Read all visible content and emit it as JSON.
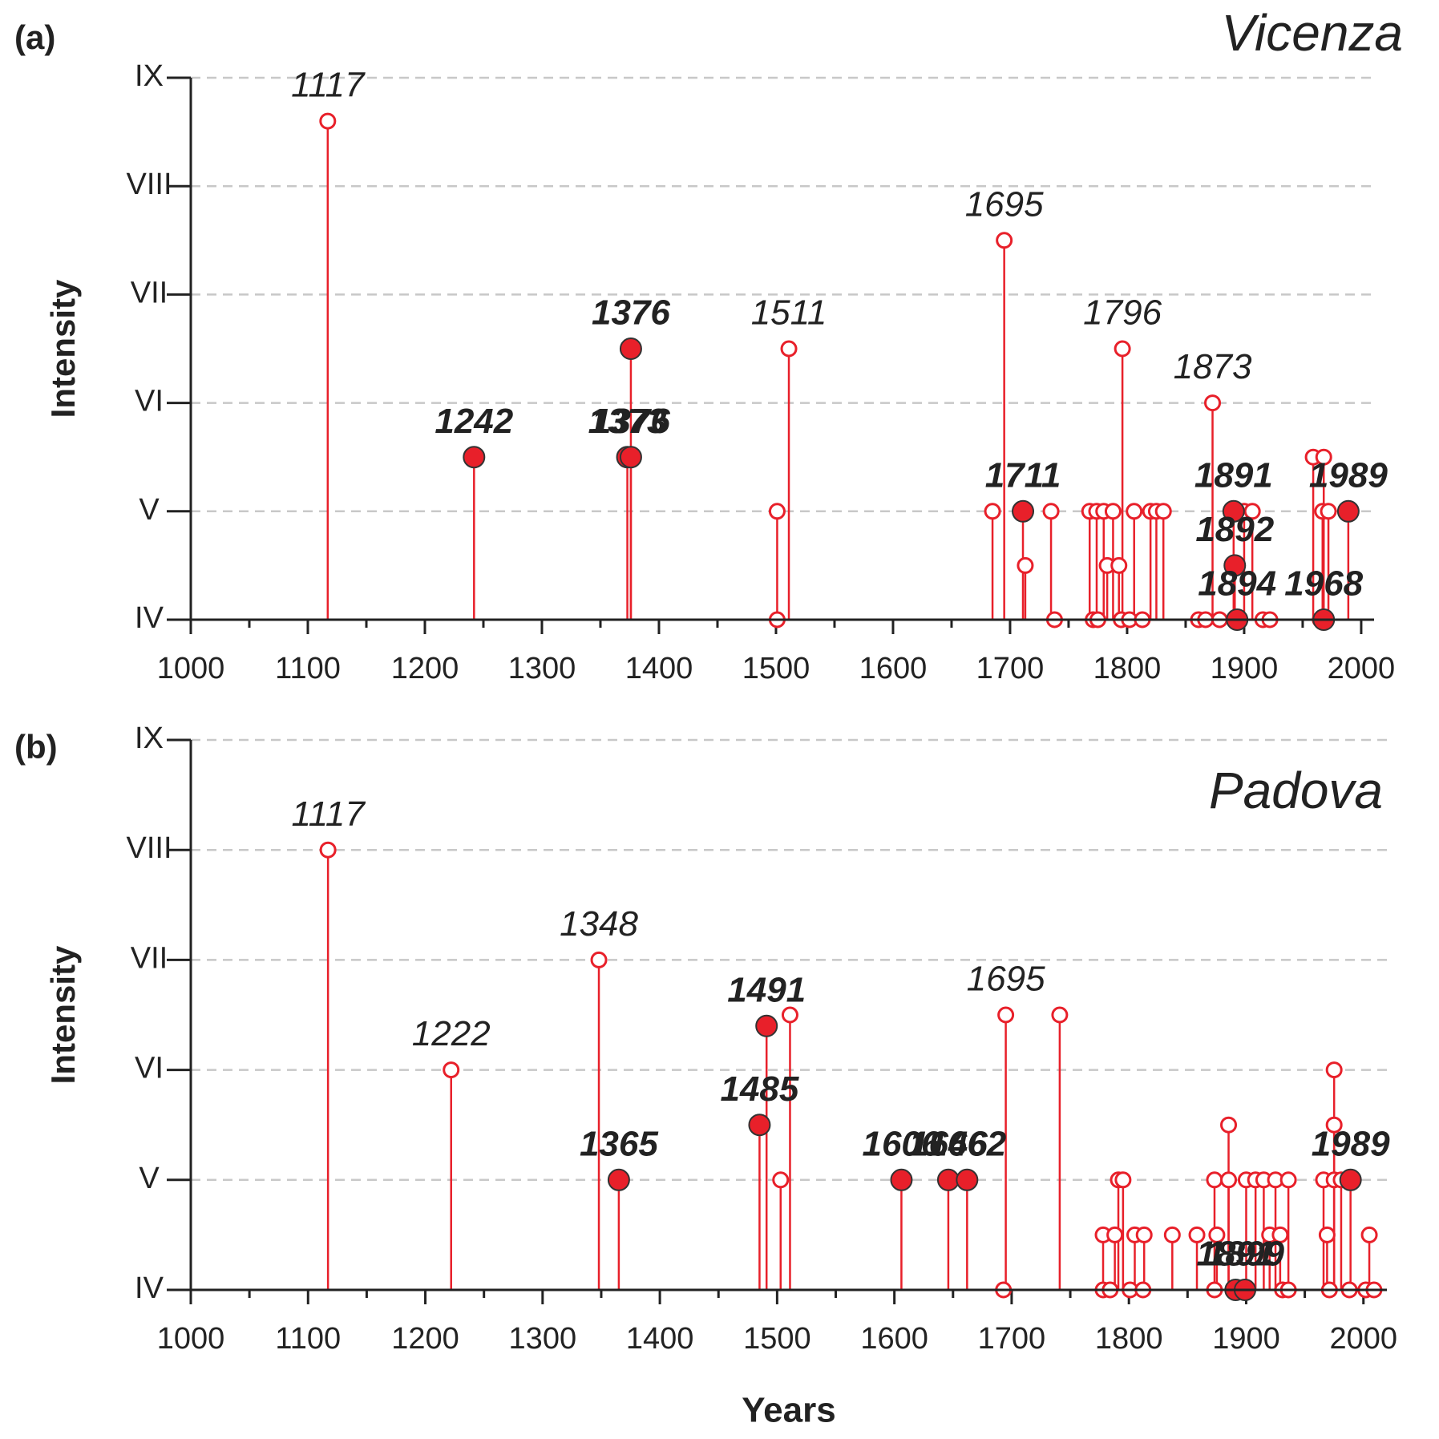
{
  "chart_data": [
    {
      "type": "stem",
      "panel_label": "(a)",
      "title": "Vicenza",
      "ylabel": "Intensity",
      "xlim": [
        1000,
        2011
      ],
      "ylim": [
        4,
        9
      ],
      "xticks": [
        1000,
        1100,
        1200,
        1300,
        1400,
        1500,
        1600,
        1700,
        1800,
        1900,
        2000
      ],
      "xminorticks": [
        1050,
        1150,
        1250,
        1350,
        1450,
        1550,
        1650,
        1750,
        1850,
        1950
      ],
      "yticks": [
        {
          "value": 4,
          "label": "IV"
        },
        {
          "value": 5,
          "label": "V"
        },
        {
          "value": 6,
          "label": "VI"
        },
        {
          "value": 7,
          "label": "VII"
        },
        {
          "value": 8,
          "label": "VIII"
        },
        {
          "value": 9,
          "label": "IX"
        }
      ],
      "grid": true,
      "color": "#e8202a",
      "title_color": "#116b3c",
      "series": [
        {
          "marker": "open",
          "labels": true,
          "x": [
            1117,
            1511,
            1695,
            1796,
            1873
          ],
          "values": [
            8.6,
            6.5,
            7.5,
            6.5,
            6
          ]
        },
        {
          "marker": "open",
          "labels": false,
          "x": [
            1501,
            1501,
            1685,
            1713,
            1735,
            1738,
            1768,
            1774,
            1780,
            1788,
            1783,
            1793,
            1771,
            1775,
            1795,
            1802,
            1813,
            1806,
            1820,
            1825,
            1831,
            1861,
            1867,
            1900,
            1907,
            1879,
            1916,
            1922,
            1959,
            1968,
            1967,
            1972,
            1965
          ],
          "values": [
            5,
            4,
            5,
            4.5,
            5,
            4,
            5,
            5,
            5,
            5,
            4.5,
            4.5,
            4,
            4,
            4,
            4,
            4,
            5,
            5,
            5,
            5,
            4,
            4,
            5,
            5,
            4,
            4,
            4,
            5.5,
            5.5,
            5,
            5,
            4
          ]
        },
        {
          "marker": "filled",
          "labels": true,
          "x": [
            1242,
            1373,
            1376,
            1376,
            1711,
            1891,
            1892,
            1894,
            1968,
            1989
          ],
          "values": [
            5.5,
            5.5,
            6.5,
            5.5,
            5,
            5,
            4.5,
            4,
            4,
            5
          ]
        }
      ]
    },
    {
      "type": "stem",
      "panel_label": "(b)",
      "title": "Padova",
      "ylabel": "Intensity",
      "xlabel": "Years",
      "xlim": [
        1000,
        2020
      ],
      "ylim": [
        4,
        9
      ],
      "xticks": [
        1000,
        1100,
        1200,
        1300,
        1400,
        1500,
        1600,
        1700,
        1800,
        1900,
        2000
      ],
      "xminorticks": [
        1050,
        1150,
        1250,
        1350,
        1450,
        1550,
        1650,
        1750,
        1850,
        1950
      ],
      "yticks": [
        {
          "value": 4,
          "label": "IV"
        },
        {
          "value": 5,
          "label": "V"
        },
        {
          "value": 6,
          "label": "VI"
        },
        {
          "value": 7,
          "label": "VII"
        },
        {
          "value": 8,
          "label": "VIII"
        },
        {
          "value": 9,
          "label": "IX"
        }
      ],
      "grid": true,
      "color": "#e8202a",
      "title_color": "#116b3c",
      "series": [
        {
          "marker": "open",
          "labels": true,
          "x": [
            1117,
            1222,
            1348,
            1695
          ],
          "values": [
            8,
            6,
            7,
            6.5
          ]
        },
        {
          "marker": "open",
          "labels": false,
          "x": [
            1511,
            1503,
            1693,
            1741,
            1778,
            1788,
            1805,
            1813,
            1837,
            1858,
            1875,
            1920,
            1929,
            1969,
            2005,
            1791,
            1795,
            1873,
            1885,
            1900,
            1908,
            1915,
            1925,
            1936,
            1966,
            1975,
            1981,
            1778,
            1784,
            1801,
            1812,
            1873,
            1931,
            1936,
            1971,
            1988,
            2002,
            2009,
            1885,
            1975,
            1975
          ],
          "values": [
            6.5,
            5,
            4,
            6.5,
            4.5,
            4.5,
            4.5,
            4.5,
            4.5,
            4.5,
            4.5,
            4.5,
            4.5,
            4.5,
            4.5,
            5,
            5,
            5,
            5,
            5,
            5,
            5,
            5,
            5,
            5,
            5,
            5,
            4,
            4,
            4,
            4,
            4,
            4,
            4,
            4,
            4,
            4,
            4,
            5.5,
            5.5,
            6
          ]
        },
        {
          "marker": "filled",
          "labels": true,
          "x": [
            1365,
            1485,
            1491,
            1606,
            1646,
            1662,
            1891,
            1899,
            1989
          ],
          "values": [
            5,
            5.5,
            6.4,
            5,
            5,
            5,
            4,
            4,
            5
          ]
        }
      ]
    }
  ]
}
